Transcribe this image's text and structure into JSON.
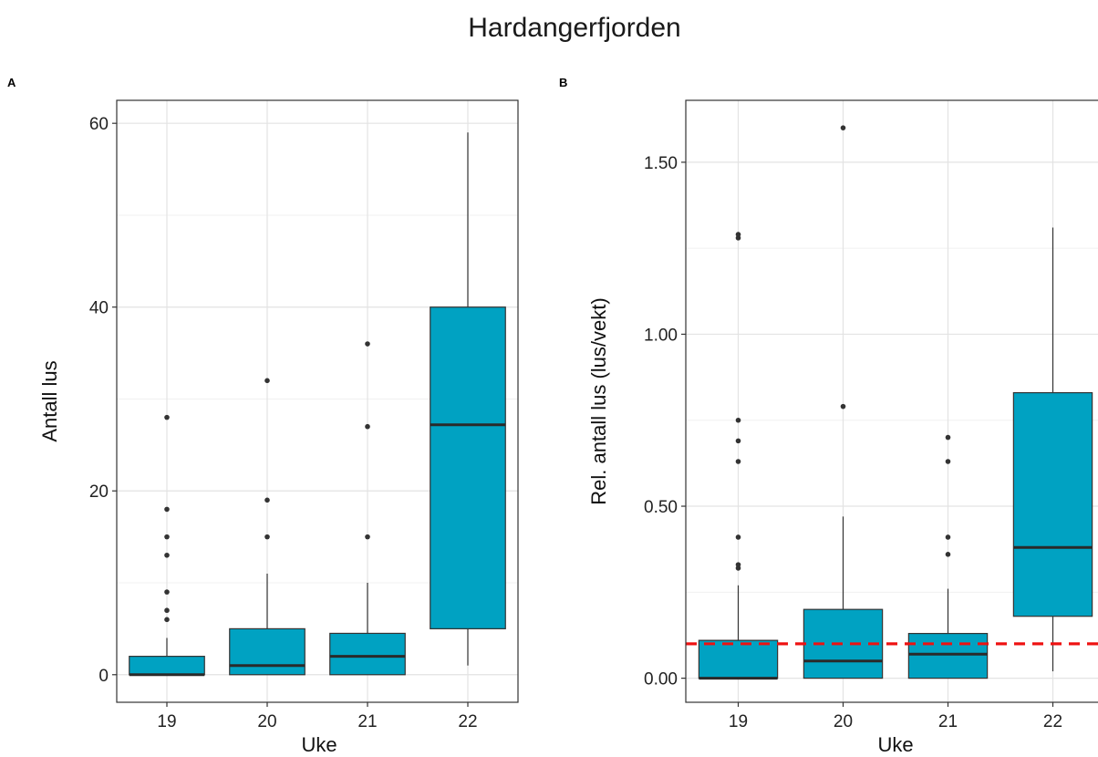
{
  "title": "Hardangerfjorden",
  "chart_data": [
    {
      "panel": "A",
      "type": "boxplot",
      "categories": [
        "19",
        "20",
        "21",
        "22"
      ],
      "xlabel": "Uke",
      "ylabel": "Antall lus",
      "ylim": [
        -3,
        62.5
      ],
      "yticks": [
        0,
        20,
        40,
        60
      ],
      "ytick_labels": [
        "0",
        "20",
        "40",
        "60"
      ],
      "grid": true,
      "box_color": "#00a2c2",
      "boxes": [
        {
          "category": "19",
          "whisker_low": 0,
          "q1": 0,
          "median": 0,
          "q3": 2,
          "whisker_high": 4,
          "outliers": [
            6,
            7,
            9,
            13,
            15,
            18,
            28
          ]
        },
        {
          "category": "20",
          "whisker_low": 0,
          "q1": 0,
          "median": 1,
          "q3": 5,
          "whisker_high": 11,
          "outliers": [
            15,
            19,
            32
          ]
        },
        {
          "category": "21",
          "whisker_low": 0,
          "q1": 0,
          "median": 2,
          "q3": 4.5,
          "whisker_high": 10,
          "outliers": [
            15,
            27,
            36
          ]
        },
        {
          "category": "22",
          "whisker_low": 1,
          "q1": 5,
          "median": 27.2,
          "q3": 40,
          "whisker_high": 59,
          "outliers": []
        }
      ]
    },
    {
      "panel": "B",
      "type": "boxplot",
      "categories": [
        "19",
        "20",
        "21",
        "22"
      ],
      "xlabel": "Uke",
      "ylabel": "Rel. antall lus (lus/vekt)",
      "ylim": [
        -0.07,
        1.68
      ],
      "yticks": [
        0,
        0.5,
        1.0,
        1.5
      ],
      "ytick_labels": [
        "0.00",
        "0.50",
        "1.00",
        "1.50"
      ],
      "grid": true,
      "box_color": "#00a2c2",
      "reference_line": {
        "y": 0.1,
        "color": "#ee1111",
        "style": "dashed"
      },
      "boxes": [
        {
          "category": "19",
          "whisker_low": 0,
          "q1": 0,
          "median": 0,
          "q3": 0.11,
          "whisker_high": 0.27,
          "outliers": [
            0.32,
            0.33,
            0.41,
            0.63,
            0.69,
            0.75,
            1.28,
            1.29
          ]
        },
        {
          "category": "20",
          "whisker_low": 0,
          "q1": 0,
          "median": 0.05,
          "q3": 0.2,
          "whisker_high": 0.47,
          "outliers": [
            0.79,
            1.6
          ]
        },
        {
          "category": "21",
          "whisker_low": 0,
          "q1": 0,
          "median": 0.07,
          "q3": 0.13,
          "whisker_high": 0.26,
          "outliers": [
            0.36,
            0.41,
            0.63,
            0.7
          ]
        },
        {
          "category": "22",
          "whisker_low": 0.02,
          "q1": 0.18,
          "median": 0.38,
          "q3": 0.83,
          "whisker_high": 1.31,
          "outliers": []
        }
      ]
    }
  ]
}
